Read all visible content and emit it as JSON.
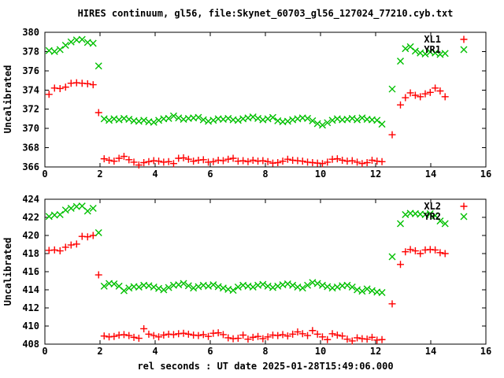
{
  "title": "HIRES continuum, gl56, file:Skynet_60703_gl56_127024_77210.cyb.txt",
  "xlabel": "rel seconds : UT date 2025-01-28T15:49:06.000",
  "colors": {
    "xl_series": "#ff0000",
    "yr_series": "#00c000",
    "axis": "#000000",
    "background": "#ffffff"
  },
  "chart_data": [
    {
      "type": "scatter",
      "panel": "top",
      "ylabel": "Uncalibrated",
      "xlim": [
        0,
        16
      ],
      "ylim": [
        366,
        380
      ],
      "xticks": [
        0,
        2,
        4,
        6,
        8,
        10,
        12,
        14,
        16
      ],
      "yticks": [
        366,
        368,
        370,
        372,
        374,
        376,
        378,
        380
      ],
      "grid": false,
      "legend_position": "top-right",
      "series": [
        {
          "name": "XL1",
          "marker": "plus",
          "color": "#ff0000",
          "x": [
            0.15,
            0.35,
            0.55,
            0.75,
            0.95,
            1.15,
            1.35,
            1.55,
            1.75,
            1.95,
            2.15,
            2.33,
            2.51,
            2.69,
            2.87,
            3.05,
            3.23,
            3.41,
            3.59,
            3.77,
            3.95,
            4.13,
            4.31,
            4.49,
            4.67,
            4.85,
            5.03,
            5.21,
            5.39,
            5.57,
            5.75,
            5.93,
            6.11,
            6.29,
            6.47,
            6.65,
            6.83,
            7.01,
            7.19,
            7.37,
            7.55,
            7.73,
            7.91,
            8.09,
            8.27,
            8.45,
            8.63,
            8.81,
            8.99,
            9.17,
            9.35,
            9.53,
            9.71,
            9.89,
            10.07,
            10.25,
            10.43,
            10.61,
            10.79,
            10.97,
            11.15,
            11.33,
            11.51,
            11.69,
            11.87,
            12.05,
            12.23,
            12.6,
            12.9,
            13.08,
            13.26,
            13.44,
            13.62,
            13.8,
            13.98,
            14.16,
            14.34,
            14.52
          ],
          "y": [
            373.55,
            374.2,
            374.15,
            374.3,
            374.7,
            374.75,
            374.7,
            374.65,
            374.55,
            371.65,
            366.85,
            366.7,
            366.6,
            366.9,
            367.1,
            366.75,
            366.5,
            366.2,
            366.45,
            366.55,
            366.65,
            366.6,
            366.5,
            366.55,
            366.35,
            366.9,
            366.95,
            366.8,
            366.6,
            366.7,
            366.75,
            366.5,
            366.55,
            366.7,
            366.65,
            366.8,
            366.9,
            366.6,
            366.65,
            366.55,
            366.7,
            366.6,
            366.65,
            366.55,
            366.4,
            366.45,
            366.6,
            366.8,
            366.7,
            366.65,
            366.6,
            366.5,
            366.45,
            366.4,
            366.35,
            366.5,
            366.8,
            366.85,
            366.7,
            366.6,
            366.65,
            366.5,
            366.35,
            366.45,
            366.7,
            366.6,
            366.55,
            369.35,
            372.45,
            373.2,
            373.7,
            373.45,
            373.3,
            373.6,
            373.75,
            374.2,
            373.9,
            373.3
          ]
        },
        {
          "name": "YR1",
          "marker": "cross",
          "color": "#00c000",
          "x": [
            0.15,
            0.35,
            0.55,
            0.75,
            0.95,
            1.15,
            1.35,
            1.55,
            1.75,
            1.95,
            2.15,
            2.33,
            2.51,
            2.69,
            2.87,
            3.05,
            3.23,
            3.41,
            3.59,
            3.77,
            3.95,
            4.13,
            4.31,
            4.49,
            4.67,
            4.85,
            5.03,
            5.21,
            5.39,
            5.57,
            5.75,
            5.93,
            6.11,
            6.29,
            6.47,
            6.65,
            6.83,
            7.01,
            7.19,
            7.37,
            7.55,
            7.73,
            7.91,
            8.09,
            8.27,
            8.45,
            8.63,
            8.81,
            8.99,
            9.17,
            9.35,
            9.53,
            9.71,
            9.89,
            10.07,
            10.25,
            10.43,
            10.61,
            10.79,
            10.97,
            11.15,
            11.33,
            11.51,
            11.69,
            11.87,
            12.05,
            12.23,
            12.6,
            12.9,
            13.08,
            13.26,
            13.44,
            13.62,
            13.8,
            13.98,
            14.16,
            14.34,
            14.52
          ],
          "y": [
            378.1,
            378.0,
            378.2,
            378.65,
            379.0,
            379.2,
            379.25,
            378.95,
            378.85,
            376.5,
            371.0,
            370.85,
            371.0,
            370.9,
            371.05,
            370.95,
            370.8,
            370.75,
            370.85,
            370.7,
            370.65,
            370.85,
            371.0,
            371.05,
            371.3,
            371.1,
            370.95,
            371.05,
            371.1,
            371.15,
            370.9,
            370.75,
            370.85,
            371.0,
            370.95,
            371.05,
            370.9,
            370.85,
            371.0,
            371.1,
            371.2,
            371.05,
            370.9,
            371.0,
            371.15,
            370.8,
            370.7,
            370.75,
            370.9,
            371.0,
            371.1,
            371.05,
            370.8,
            370.5,
            370.35,
            370.6,
            370.85,
            371.0,
            370.9,
            370.95,
            371.05,
            370.9,
            371.1,
            370.95,
            370.9,
            370.85,
            370.45,
            374.1,
            377.0,
            378.3,
            378.5,
            378.05,
            377.85,
            377.75,
            377.95,
            377.85,
            377.7,
            377.8
          ]
        }
      ]
    },
    {
      "type": "scatter",
      "panel": "bottom",
      "ylabel": "Uncalibrated",
      "xlim": [
        0,
        16
      ],
      "ylim": [
        408,
        424
      ],
      "xticks": [
        0,
        2,
        4,
        6,
        8,
        10,
        12,
        14,
        16
      ],
      "yticks": [
        408,
        410,
        412,
        414,
        416,
        418,
        420,
        422,
        424
      ],
      "grid": false,
      "legend_position": "top-right",
      "series": [
        {
          "name": "XL2",
          "marker": "plus",
          "color": "#ff0000",
          "x": [
            0.15,
            0.35,
            0.55,
            0.75,
            0.95,
            1.15,
            1.35,
            1.55,
            1.75,
            1.95,
            2.15,
            2.33,
            2.51,
            2.69,
            2.87,
            3.05,
            3.23,
            3.41,
            3.59,
            3.77,
            3.95,
            4.13,
            4.31,
            4.49,
            4.67,
            4.85,
            5.03,
            5.21,
            5.39,
            5.57,
            5.75,
            5.93,
            6.11,
            6.29,
            6.47,
            6.65,
            6.83,
            7.01,
            7.19,
            7.37,
            7.55,
            7.73,
            7.91,
            8.09,
            8.27,
            8.45,
            8.63,
            8.81,
            8.99,
            9.17,
            9.35,
            9.53,
            9.71,
            9.89,
            10.07,
            10.25,
            10.43,
            10.61,
            10.79,
            10.97,
            11.15,
            11.33,
            11.51,
            11.69,
            11.87,
            12.05,
            12.23,
            12.6,
            12.9,
            13.08,
            13.26,
            13.44,
            13.62,
            13.8,
            13.98,
            14.16,
            14.34,
            14.52
          ],
          "y": [
            418.35,
            418.4,
            418.3,
            418.7,
            418.95,
            419.05,
            419.9,
            419.85,
            420.0,
            415.65,
            408.9,
            408.8,
            408.85,
            409.0,
            409.05,
            408.95,
            408.75,
            408.65,
            409.7,
            409.1,
            408.95,
            408.8,
            409.0,
            409.1,
            409.05,
            409.15,
            409.2,
            409.1,
            409.0,
            408.95,
            409.05,
            408.85,
            409.2,
            409.25,
            409.05,
            408.7,
            408.6,
            408.65,
            409.0,
            408.55,
            408.75,
            408.85,
            408.6,
            408.8,
            409.0,
            408.95,
            409.05,
            408.9,
            409.1,
            409.35,
            409.15,
            408.95,
            409.5,
            409.1,
            408.8,
            408.5,
            409.15,
            409.0,
            408.9,
            408.55,
            408.35,
            408.7,
            408.6,
            408.55,
            408.75,
            408.45,
            408.5,
            412.45,
            416.8,
            418.2,
            418.45,
            418.3,
            418.0,
            418.4,
            418.45,
            418.4,
            418.1,
            418.0
          ]
        },
        {
          "name": "YR2",
          "marker": "cross",
          "color": "#00c000",
          "x": [
            0.15,
            0.35,
            0.55,
            0.75,
            0.95,
            1.15,
            1.35,
            1.55,
            1.75,
            1.95,
            2.15,
            2.33,
            2.51,
            2.69,
            2.87,
            3.05,
            3.23,
            3.41,
            3.59,
            3.77,
            3.95,
            4.13,
            4.31,
            4.49,
            4.67,
            4.85,
            5.03,
            5.21,
            5.39,
            5.57,
            5.75,
            5.93,
            6.11,
            6.29,
            6.47,
            6.65,
            6.83,
            7.01,
            7.19,
            7.37,
            7.55,
            7.73,
            7.91,
            8.09,
            8.27,
            8.45,
            8.63,
            8.81,
            8.99,
            9.17,
            9.35,
            9.53,
            9.71,
            9.89,
            10.07,
            10.25,
            10.43,
            10.61,
            10.79,
            10.97,
            11.15,
            11.33,
            11.51,
            11.69,
            11.87,
            12.05,
            12.23,
            12.6,
            12.9,
            13.08,
            13.26,
            13.44,
            13.62,
            13.8,
            13.98,
            14.16,
            14.34,
            14.52
          ],
          "y": [
            422.1,
            422.25,
            422.3,
            422.8,
            423.0,
            423.2,
            423.25,
            422.7,
            423.0,
            420.3,
            414.4,
            414.7,
            414.65,
            414.4,
            413.9,
            414.2,
            414.35,
            414.3,
            414.5,
            414.45,
            414.3,
            414.15,
            414.0,
            414.25,
            414.5,
            414.55,
            414.7,
            414.45,
            414.2,
            414.35,
            414.5,
            414.4,
            414.55,
            414.35,
            414.2,
            414.05,
            413.95,
            414.3,
            414.5,
            414.4,
            414.3,
            414.5,
            414.6,
            414.4,
            414.25,
            414.4,
            414.55,
            414.65,
            414.5,
            414.3,
            414.2,
            414.5,
            414.8,
            414.7,
            414.5,
            414.35,
            414.2,
            414.3,
            414.45,
            414.5,
            414.3,
            414.0,
            413.85,
            414.1,
            413.9,
            413.75,
            413.7,
            417.65,
            421.3,
            422.3,
            422.45,
            422.4,
            422.35,
            422.3,
            422.4,
            422.2,
            421.6,
            421.3
          ]
        }
      ]
    }
  ]
}
